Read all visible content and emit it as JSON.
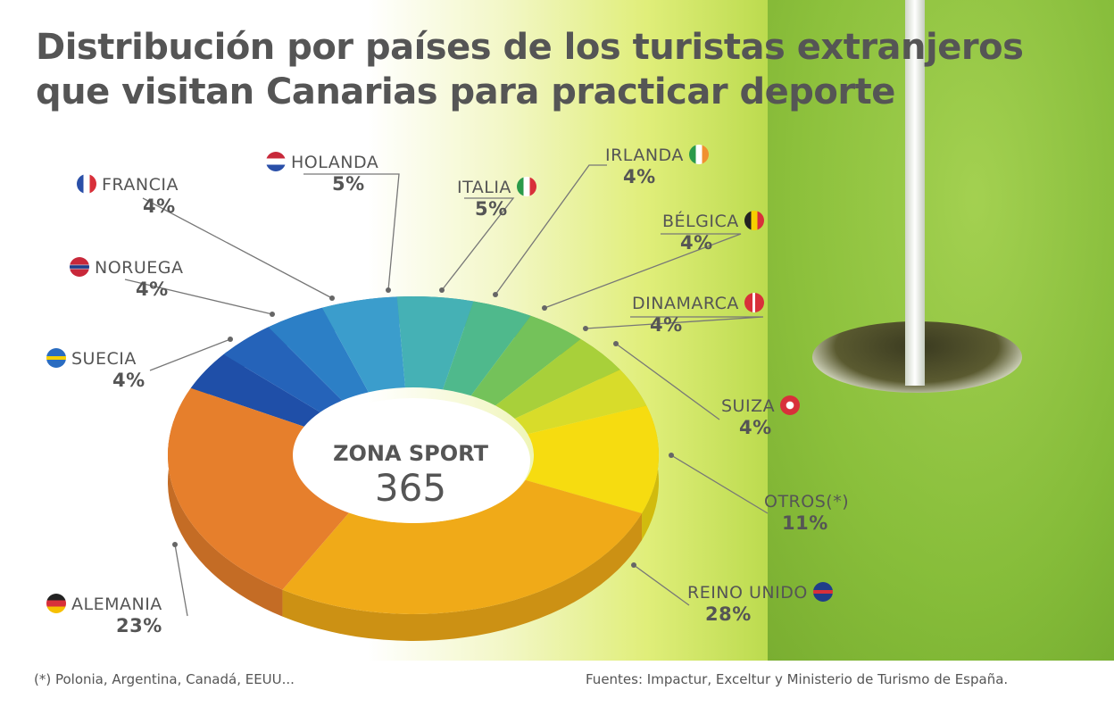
{
  "chart_data": {
    "type": "pie",
    "title": "Distribución por países de los turistas extranjeros que visitan Canarias para practicar deporte",
    "title_lines": [
      "Distribución por países de los turistas extranjeros",
      "que visitan Canarias para practicar deporte"
    ],
    "center_label": "ZONA SPORT",
    "center_value": "365",
    "unit": "%",
    "slices": [
      {
        "label": "SUECIA",
        "value": 4,
        "pct_label": "4%",
        "color": "#1f4fa8"
      },
      {
        "label": "NORUEGA",
        "value": 4,
        "pct_label": "4%",
        "color": "#2563b9"
      },
      {
        "label": "FRANCIA",
        "value": 4,
        "pct_label": "4%",
        "color": "#2c7fc6"
      },
      {
        "label": "HOLANDA",
        "value": 5,
        "pct_label": "5%",
        "color": "#3b9dcc"
      },
      {
        "label": "ITALIA",
        "value": 5,
        "pct_label": "5%",
        "color": "#45b1b5"
      },
      {
        "label": "IRLANDA",
        "value": 4,
        "pct_label": "4%",
        "color": "#4fb98c"
      },
      {
        "label": "BÉLGICA",
        "value": 4,
        "pct_label": "4%",
        "color": "#74c25a"
      },
      {
        "label": "DINAMARCA",
        "value": 4,
        "pct_label": "4%",
        "color": "#a8d03a"
      },
      {
        "label": "SUIZA",
        "value": 4,
        "pct_label": "4%",
        "color": "#d8dc2a"
      },
      {
        "label": "OTROS(*)",
        "value": 11,
        "pct_label": "11%",
        "color": "#f6dc10"
      },
      {
        "label": "REINO UNIDO",
        "value": 28,
        "pct_label": "28%",
        "color": "#f0aa18"
      },
      {
        "label": "ALEMANIA",
        "value": 23,
        "pct_label": "23%",
        "color": "#e67f2c"
      }
    ]
  },
  "footnote": "(*) Polonia, Argentina, Canadá, EEUU...",
  "sources": "Fuentes: Impactur, Exceltur y Ministerio de Turismo de España."
}
